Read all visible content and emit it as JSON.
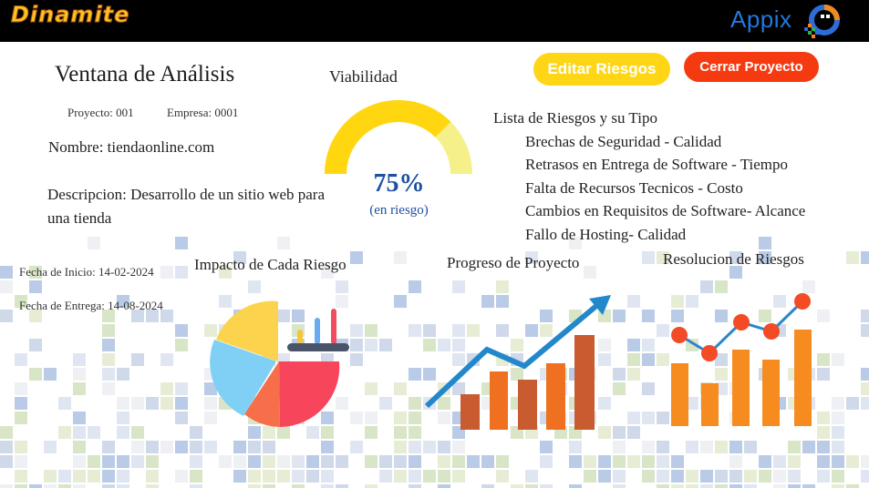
{
  "header": {
    "brand": "Dinamite",
    "logo_text": "Appix",
    "logo_icon": "appix-logo-icon"
  },
  "window": {
    "title": "Ventana de Análisis",
    "project_label": "Proyecto: 001",
    "company_label": "Empresa: 0001",
    "name": "Nombre: tiendaonline.com",
    "description": "Descripcion: Desarrollo de un sitio web para una tienda",
    "start_date": "Fecha de Inicio: 14-02-2024",
    "end_date": "Fecha de Entrega: 14-08-2024"
  },
  "viability": {
    "label": "Viabilidad",
    "percent_text": "75%",
    "subtext": "(en riesgo)",
    "value": 0.75,
    "colors": {
      "filled": "#ffd60f",
      "remaining": "#f6f08a"
    }
  },
  "actions": {
    "edit_label": "Editar Riesgos",
    "close_label": "Cerrar Proyecto",
    "edit_color": "#ffd615",
    "close_color": "#f53a12"
  },
  "risks": {
    "heading": "Lista de Riesgos y su Tipo",
    "items": [
      "Brechas de Seguridad - Calidad",
      "Retrasos en Entrega de Software - Tiempo",
      "Falta de Recursos Tecnicos - Costo",
      "Cambios en Requisitos de Software- Alcance",
      "Fallo de Hosting- Calidad"
    ]
  },
  "panels": {
    "impact_title": "Impacto de Cada Riesgo",
    "progress_title": "Progreso de Proyecto",
    "resolution_title": "Resolucion de Riesgos"
  },
  "icons": {
    "impact": "pie-chart-icon",
    "progress": "growth-bar-chart-icon",
    "resolution": "bar-line-chart-icon"
  }
}
